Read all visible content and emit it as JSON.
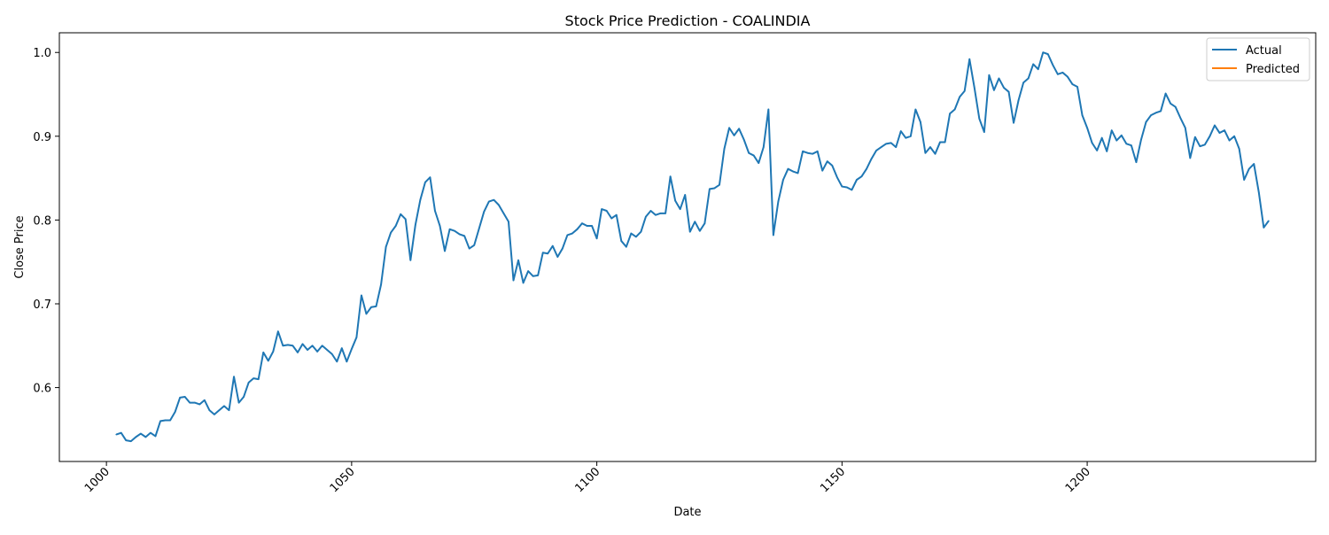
{
  "chart_data": {
    "type": "line",
    "title": "Stock Price Prediction - COALINDIA",
    "xlabel": "Date",
    "ylabel": "Close Price",
    "xlim": [
      990.4,
      1246.6
    ],
    "ylim": [
      0.5118,
      1.0235
    ],
    "xticks": [
      1000,
      1050,
      1100,
      1150,
      1200
    ],
    "xtick_labels": [
      "1000",
      "1050",
      "1100",
      "1150",
      "1200"
    ],
    "yticks": [
      0.6,
      0.7,
      0.8,
      0.9,
      1.0
    ],
    "ytick_labels": [
      "0.6",
      "0.7",
      "0.8",
      "0.9",
      "1.0"
    ],
    "grid": false,
    "legend_position": "top-right",
    "series": [
      {
        "name": "Actual",
        "color": "#1f77b4",
        "x_start": 1002,
        "values": [
          0.544,
          0.546,
          0.537,
          0.536,
          0.541,
          0.545,
          0.541,
          0.546,
          0.542,
          0.56,
          0.561,
          0.561,
          0.571,
          0.588,
          0.589,
          0.582,
          0.582,
          0.58,
          0.585,
          0.573,
          0.568,
          0.573,
          0.578,
          0.573,
          0.613,
          0.582,
          0.589,
          0.606,
          0.611,
          0.61,
          0.642,
          0.632,
          0.643,
          0.667,
          0.65,
          0.651,
          0.65,
          0.642,
          0.652,
          0.645,
          0.65,
          0.643,
          0.65,
          0.645,
          0.64,
          0.631,
          0.647,
          0.631,
          0.646,
          0.66,
          0.71,
          0.688,
          0.696,
          0.697,
          0.723,
          0.768,
          0.785,
          0.793,
          0.807,
          0.801,
          0.752,
          0.794,
          0.824,
          0.845,
          0.851,
          0.811,
          0.793,
          0.763,
          0.789,
          0.787,
          0.783,
          0.781,
          0.766,
          0.77,
          0.79,
          0.81,
          0.822,
          0.824,
          0.818,
          0.808,
          0.798,
          0.728,
          0.752,
          0.725,
          0.739,
          0.733,
          0.734,
          0.761,
          0.76,
          0.769,
          0.756,
          0.766,
          0.782,
          0.784,
          0.789,
          0.796,
          0.793,
          0.793,
          0.778,
          0.813,
          0.811,
          0.802,
          0.806,
          0.775,
          0.768,
          0.784,
          0.78,
          0.786,
          0.804,
          0.811,
          0.806,
          0.808,
          0.808,
          0.852,
          0.823,
          0.813,
          0.83,
          0.786,
          0.798,
          0.787,
          0.796,
          0.837,
          0.838,
          0.842,
          0.885,
          0.91,
          0.901,
          0.909,
          0.896,
          0.88,
          0.877,
          0.868,
          0.887,
          0.932,
          0.782,
          0.822,
          0.848,
          0.861,
          0.858,
          0.856,
          0.882,
          0.88,
          0.879,
          0.882,
          0.859,
          0.87,
          0.865,
          0.851,
          0.84,
          0.839,
          0.836,
          0.848,
          0.852,
          0.861,
          0.873,
          0.883,
          0.887,
          0.891,
          0.892,
          0.887,
          0.906,
          0.898,
          0.9,
          0.932,
          0.917,
          0.88,
          0.887,
          0.879,
          0.893,
          0.893,
          0.927,
          0.932,
          0.947,
          0.954,
          0.992,
          0.958,
          0.921,
          0.905,
          0.973,
          0.955,
          0.969,
          0.958,
          0.953,
          0.916,
          0.943,
          0.964,
          0.969,
          0.986,
          0.98,
          1.0,
          0.998,
          0.985,
          0.974,
          0.976,
          0.971,
          0.962,
          0.959,
          0.925,
          0.91,
          0.892,
          0.883,
          0.898,
          0.882,
          0.907,
          0.895,
          0.901,
          0.891,
          0.889,
          0.869,
          0.896,
          0.917,
          0.925,
          0.928,
          0.93,
          0.951,
          0.939,
          0.935,
          0.922,
          0.91,
          0.874,
          0.899,
          0.888,
          0.89,
          0.9,
          0.913,
          0.904,
          0.907,
          0.895,
          0.9,
          0.885,
          0.848,
          0.861,
          0.867,
          0.833,
          0.791,
          0.799
        ]
      },
      {
        "name": "Predicted",
        "color": "#ff7f0e",
        "values": []
      }
    ]
  }
}
